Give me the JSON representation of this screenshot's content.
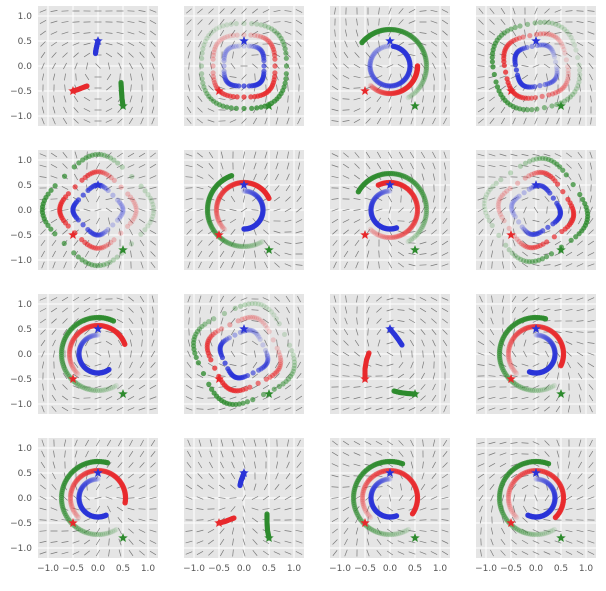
{
  "figure": {
    "grid_rows": 4,
    "grid_cols": 4,
    "panel_background": "#e5e5e5",
    "grid_color": "#ffffff",
    "arrow_color": "#555555",
    "series_colors": {
      "blue": "#2a34d8",
      "red": "#e8292c",
      "green": "#2e8b2e"
    }
  },
  "chart_data": {
    "type": "scatter",
    "xlim": [
      -1.2,
      1.2
    ],
    "ylim": [
      -1.2,
      1.2
    ],
    "x_ticks": [
      -1.0,
      -0.5,
      0.0,
      0.5,
      1.0
    ],
    "y_ticks": [
      -1.0,
      -0.5,
      0.0,
      0.5,
      1.0
    ],
    "x_tick_labels": [
      "−1.0",
      "−0.5",
      "0.0",
      "0.5",
      "1.0"
    ],
    "y_tick_labels": [
      "−1.0",
      "−0.5",
      "0.0",
      "0.5",
      "1.0"
    ],
    "grid": true,
    "x_ticks_shown_on": "bottom row only",
    "y_ticks_shown_on": "left column only",
    "start_markers": [
      {
        "series": "blue",
        "x": 0.0,
        "y": 0.5,
        "marker": "star"
      },
      {
        "series": "red",
        "x": -0.5,
        "y": -0.5,
        "marker": "star"
      },
      {
        "series": "green",
        "x": 0.5,
        "y": -0.8,
        "marker": "star"
      }
    ],
    "panels": [
      {
        "kind": "short",
        "blue": [
          [
            0.0,
            0.5
          ],
          [
            -0.02,
            0.42
          ],
          [
            -0.04,
            0.33
          ],
          [
            -0.05,
            0.25
          ]
        ],
        "red": [
          [
            -0.5,
            -0.5
          ],
          [
            -0.4,
            -0.47
          ],
          [
            -0.3,
            -0.43
          ],
          [
            -0.22,
            -0.4
          ]
        ],
        "green": [
          [
            0.5,
            -0.8
          ],
          [
            0.48,
            -0.65
          ],
          [
            0.47,
            -0.5
          ],
          [
            0.46,
            -0.33
          ]
        ]
      },
      {
        "kind": "squircle",
        "blue": [
          0.4,
          0.25
        ],
        "red": [
          0.62,
          0.18
        ],
        "green": [
          0.85,
          0.12
        ],
        "rot": 0.0
      },
      {
        "kind": "arcs",
        "blue": [
          0.4,
          90,
          350,
          0
        ],
        "red": [
          0.55,
          225,
          135,
          0
        ],
        "green": [
          0.73,
          300,
          200,
          0
        ]
      },
      {
        "kind": "squircle",
        "blue": [
          0.4,
          0.25
        ],
        "red": [
          0.62,
          0.18
        ],
        "green": [
          0.85,
          0.12
        ],
        "rot": 0.2
      },
      {
        "kind": "squircle",
        "blue": [
          0.42,
          0.35
        ],
        "red": [
          0.65,
          0.3
        ],
        "green": [
          0.95,
          0.28
        ],
        "rot": 0.78
      },
      {
        "kind": "arcs",
        "blue": [
          0.38,
          90,
          -180,
          0
        ],
        "red": [
          0.55,
          225,
          -200,
          0
        ],
        "green": [
          0.73,
          300,
          -190,
          0
        ]
      },
      {
        "kind": "arcs",
        "blue": [
          0.38,
          90,
          200,
          0
        ],
        "red": [
          0.55,
          225,
          250,
          0
        ],
        "green": [
          0.73,
          300,
          210,
          0
        ]
      },
      {
        "kind": "squircle",
        "blue": [
          0.42,
          0.3
        ],
        "red": [
          0.65,
          0.28
        ],
        "green": [
          0.9,
          0.25
        ],
        "rot": 0.6
      },
      {
        "kind": "arcs",
        "blue": [
          0.38,
          90,
          215,
          0
        ],
        "red": [
          0.57,
          225,
          -205,
          0
        ],
        "green": [
          0.73,
          300,
          -235,
          0
        ]
      },
      {
        "kind": "squircle",
        "blue": [
          0.42,
          0.3
        ],
        "red": [
          0.65,
          0.28
        ],
        "green": [
          0.9,
          0.25
        ],
        "rot": 0.45
      },
      {
        "kind": "short",
        "blue": [
          [
            0.0,
            0.5
          ],
          [
            0.1,
            0.38
          ],
          [
            0.18,
            0.27
          ],
          [
            0.24,
            0.18
          ]
        ],
        "red": [
          [
            -0.5,
            -0.5
          ],
          [
            -0.5,
            -0.3
          ],
          [
            -0.47,
            -0.12
          ],
          [
            -0.42,
            0.02
          ]
        ],
        "green": [
          [
            0.5,
            -0.8
          ],
          [
            0.35,
            -0.79
          ],
          [
            0.2,
            -0.77
          ],
          [
            0.08,
            -0.74
          ]
        ]
      },
      {
        "kind": "arcs",
        "blue": [
          0.38,
          90,
          -200,
          0
        ],
        "red": [
          0.55,
          225,
          -250,
          0
        ],
        "green": [
          0.73,
          300,
          -225,
          0
        ]
      },
      {
        "kind": "arcs",
        "blue": [
          0.38,
          90,
          205,
          0
        ],
        "red": [
          0.55,
          225,
          -235,
          0
        ],
        "green": [
          0.73,
          300,
          -225,
          0
        ]
      },
      {
        "kind": "short",
        "blue": [
          [
            0.0,
            0.5
          ],
          [
            -0.03,
            0.42
          ],
          [
            -0.06,
            0.34
          ],
          [
            -0.08,
            0.25
          ]
        ],
        "red": [
          [
            -0.5,
            -0.5
          ],
          [
            -0.38,
            -0.47
          ],
          [
            -0.28,
            -0.43
          ],
          [
            -0.2,
            -0.4
          ]
        ],
        "green": [
          [
            0.5,
            -0.8
          ],
          [
            0.47,
            -0.65
          ],
          [
            0.46,
            -0.48
          ],
          [
            0.46,
            -0.32
          ]
        ]
      },
      {
        "kind": "arcs",
        "blue": [
          0.38,
          90,
          200,
          0
        ],
        "red": [
          0.55,
          225,
          -260,
          0
        ],
        "green": [
          0.73,
          300,
          -230,
          0
        ]
      },
      {
        "kind": "arcs",
        "blue": [
          0.38,
          90,
          -205,
          0
        ],
        "red": [
          0.55,
          225,
          -270,
          0
        ],
        "green": [
          0.73,
          300,
          -230,
          0
        ]
      }
    ]
  }
}
